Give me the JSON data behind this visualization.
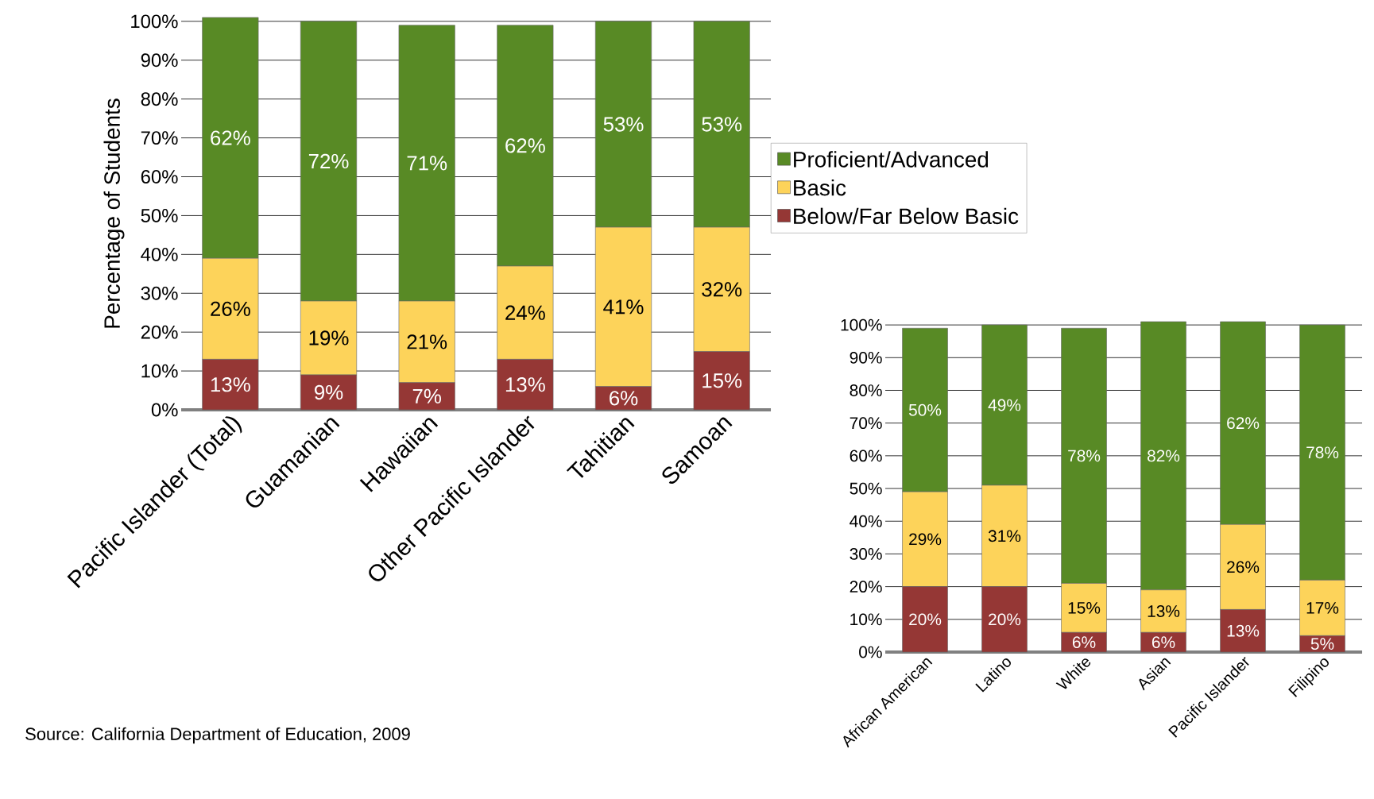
{
  "chart_data": [
    {
      "type": "bar",
      "stacked": true,
      "ylabel": "Percentage of Students",
      "categories": [
        "Pacific Islander (Total)",
        "Guamanian",
        "Hawaiian",
        "Other Pacific Islander",
        "Tahitian",
        "Samoan"
      ],
      "series": [
        {
          "name": "Below/Far Below Basic",
          "color": "#953735",
          "values": [
            13,
            9,
            7,
            13,
            6,
            15
          ],
          "value_labels": [
            "13%",
            "9%",
            "7%",
            "13%",
            "6%",
            "15%"
          ]
        },
        {
          "name": "Basic",
          "color": "#fdd35a",
          "values": [
            26,
            19,
            21,
            24,
            41,
            32
          ],
          "value_labels": [
            "26%",
            "19%",
            "21%",
            "24%",
            "41%",
            "32%"
          ]
        },
        {
          "name": "Proficient/Advanced",
          "color": "#588a25",
          "values": [
            62,
            72,
            71,
            62,
            53,
            53
          ],
          "value_labels": [
            "62%",
            "72%",
            "71%",
            "62%",
            "53%",
            "53%"
          ]
        }
      ],
      "ylim": [
        0,
        101
      ],
      "yticks": [
        {
          "value": 0,
          "label": "0%"
        },
        {
          "value": 10,
          "label": "10%"
        },
        {
          "value": 20,
          "label": "20%"
        },
        {
          "value": 30,
          "label": "30%"
        },
        {
          "value": 40,
          "label": "40%"
        },
        {
          "value": 50,
          "label": "50%"
        },
        {
          "value": 60,
          "label": "60%"
        },
        {
          "value": 70,
          "label": "70%"
        },
        {
          "value": 80,
          "label": "80%"
        },
        {
          "value": 90,
          "label": "90%"
        },
        {
          "value": 100,
          "label": "100%"
        }
      ],
      "grid": "y",
      "legend": "right",
      "annotations": [
        "Source: California Department of Education, 2009"
      ]
    },
    {
      "type": "bar",
      "stacked": true,
      "categories": [
        "African American",
        "Latino",
        "White",
        "Asian",
        "Pacific Islander",
        "Filipino"
      ],
      "series": [
        {
          "color": "#953735",
          "values": [
            20,
            20,
            6,
            6,
            13,
            5
          ],
          "value_labels": [
            "20%",
            "20%",
            "6%",
            "6%",
            "13%",
            "5%"
          ]
        },
        {
          "color": "#fdd35a",
          "values": [
            29,
            31,
            15,
            13,
            26,
            17
          ],
          "value_labels": [
            "29%",
            "31%",
            "15%",
            "13%",
            "26%",
            "17%"
          ]
        },
        {
          "color": "#588a25",
          "values": [
            50,
            49,
            78,
            82,
            62,
            78
          ],
          "value_labels": [
            "50%",
            "49%",
            "78%",
            "82%",
            "62%",
            "78%"
          ]
        }
      ],
      "ylim": [
        0,
        101
      ],
      "yticks": [
        {
          "value": 0,
          "label": "0%"
        },
        {
          "value": 10,
          "label": "10%"
        },
        {
          "value": 20,
          "label": "20%"
        },
        {
          "value": 30,
          "label": "30%"
        },
        {
          "value": 40,
          "label": "40%"
        },
        {
          "value": 50,
          "label": "50%"
        },
        {
          "value": 60,
          "label": "60%"
        },
        {
          "value": 70,
          "label": "70%"
        },
        {
          "value": 80,
          "label": "80%"
        },
        {
          "value": 90,
          "label": "90%"
        },
        {
          "value": 100,
          "label": "100%"
        }
      ],
      "grid": "y"
    }
  ]
}
